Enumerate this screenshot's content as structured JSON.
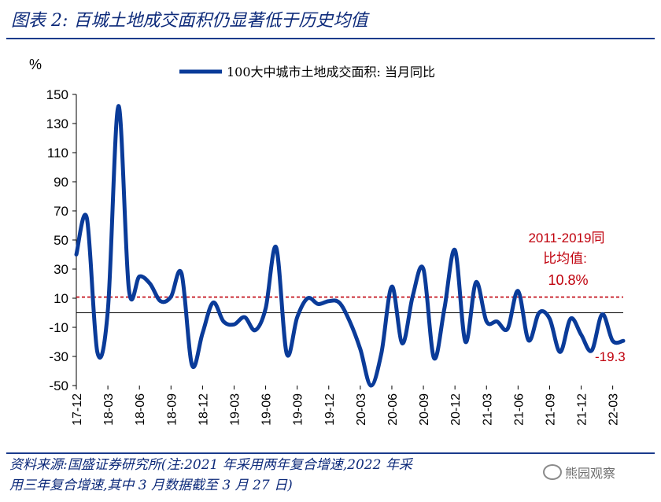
{
  "header": {
    "title": "图表 2:  百城土地成交面积仍显著低于历史均值"
  },
  "chart_data": {
    "type": "line",
    "title": "",
    "ylabel": "%",
    "xlabel": "",
    "ylim": [
      -50,
      150
    ],
    "yticks": [
      150,
      130,
      110,
      90,
      70,
      50,
      30,
      10,
      -10,
      -30,
      -50
    ],
    "ytick_labels": [
      "150",
      "130",
      "110",
      "90",
      "70",
      "50",
      "30",
      "10",
      "-10",
      "-30",
      "-50"
    ],
    "xtick_labels": [
      "17-12",
      "18-03",
      "18-06",
      "18-09",
      "18-12",
      "19-03",
      "19-06",
      "19-09",
      "19-12",
      "20-03",
      "20-06",
      "20-09",
      "20-12",
      "21-03",
      "21-06",
      "21-09",
      "21-12",
      "22-03"
    ],
    "legend": {
      "position": "top",
      "label": "100大中城市土地成交面积: 当月同比"
    },
    "series": [
      {
        "name": "100大中城市土地成交面积: 当月同比",
        "color": "#0a3b99",
        "values": [
          40,
          65,
          -27,
          2,
          142,
          16,
          25,
          20,
          8,
          11,
          27,
          -36,
          -14,
          7,
          -6,
          -8,
          -3,
          -12,
          3,
          45,
          -28,
          -3,
          10,
          6,
          8,
          7,
          -6,
          -25,
          -50,
          -28,
          18,
          -21,
          12,
          30,
          -31,
          3,
          43,
          -20,
          21,
          -6,
          -6,
          -11,
          15,
          -19,
          0,
          -4,
          -27,
          -4,
          -15,
          -26,
          -1,
          -19.3,
          -19.3
        ]
      }
    ],
    "reference_line": {
      "value": 10.8,
      "color": "#c0000c",
      "style": "dashed"
    },
    "zero_line": {
      "value": 0
    },
    "annotations": [
      {
        "text": "2011-2019同",
        "color": "#c0000c"
      },
      {
        "text": "比均值:",
        "color": "#c0000c"
      },
      {
        "text": "10.8%",
        "color": "#c0000c"
      },
      {
        "text": "-19.3",
        "color": "#c0000c"
      }
    ]
  },
  "footer": {
    "line1": "资料来源:国盛证券研究所(注:2021 年采用两年复合增速,2022 年采",
    "line2": "用三年复合增速,其中 3 月数据截至 3 月 27 日)"
  },
  "watermark": {
    "text": "熊园观察"
  }
}
